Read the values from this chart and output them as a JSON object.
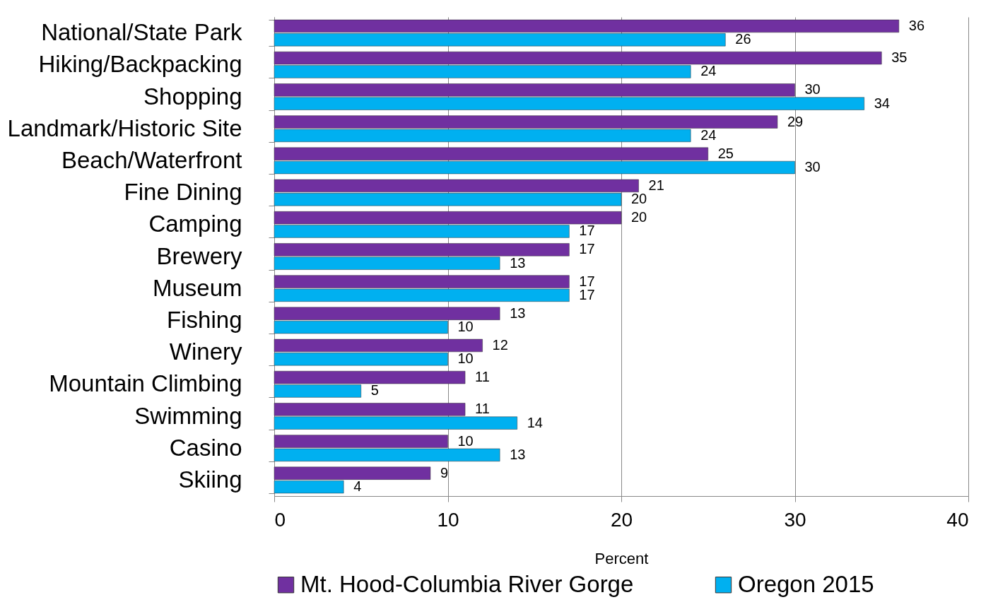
{
  "chart_data": {
    "type": "bar",
    "orientation": "horizontal",
    "xlabel": "Percent",
    "categories": [
      "National/State Park",
      "Hiking/Backpacking",
      "Shopping",
      "Landmark/Historic Site",
      "Beach/Waterfront",
      "Fine Dining",
      "Camping",
      "Brewery",
      "Museum",
      "Fishing",
      "Winery",
      "Mountain Climbing",
      "Swimming",
      "Casino",
      "Skiing"
    ],
    "series": [
      {
        "name": "Mt. Hood-Columbia River Gorge",
        "color": "#7030a0",
        "values": [
          36,
          35,
          30,
          29,
          25,
          21,
          20,
          17,
          17,
          13,
          12,
          11,
          11,
          10,
          9
        ]
      },
      {
        "name": "Oregon 2015",
        "color": "#00b0f0",
        "values": [
          26,
          24,
          34,
          24,
          30,
          20,
          17,
          13,
          17,
          10,
          10,
          5,
          14,
          13,
          4
        ]
      }
    ],
    "xlim": [
      0,
      40
    ],
    "xticks": [
      0,
      10,
      20,
      30,
      40
    ],
    "grid": "x",
    "legend": "bottom",
    "data_labels": true
  }
}
